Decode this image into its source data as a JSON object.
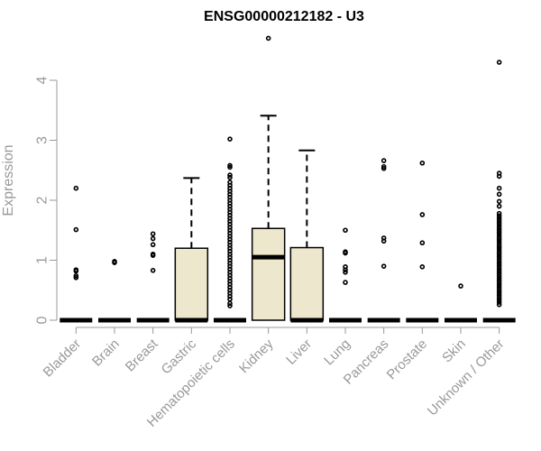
{
  "chart_data": {
    "type": "boxplot",
    "title": "ENSG00000212182 - U3",
    "ylabel": "Expression",
    "xlabel": "",
    "ylim": [
      0,
      4.7
    ],
    "yticks": [
      "0",
      "1",
      "2",
      "3",
      "4"
    ],
    "box_fill": "#ede7cd",
    "categories": [
      "Bladder",
      "Brain",
      "Breast",
      "Gastric",
      "Hematopoietic cells",
      "Kidney",
      "Liver",
      "Lung",
      "Pancreas",
      "Prostate",
      "Skin",
      "Unknown / Other"
    ],
    "series": [
      {
        "q1": 0,
        "median": 0,
        "q3": 0,
        "whisker_high": 0,
        "outliers": [
          2.2,
          1.51,
          0.84,
          0.82,
          0.74,
          0.71
        ]
      },
      {
        "q1": 0,
        "median": 0,
        "q3": 0,
        "whisker_high": 0,
        "outliers": [
          0.98,
          0.96
        ]
      },
      {
        "q1": 0,
        "median": 0,
        "q3": 0,
        "whisker_high": 0,
        "outliers": [
          1.44,
          1.36,
          1.26,
          1.1,
          1.08,
          0.83
        ]
      },
      {
        "q1": 0,
        "median": 0,
        "q3": 1.2,
        "whisker_high": 2.37,
        "outliers": []
      },
      {
        "q1": 0,
        "median": 0,
        "q3": 0,
        "whisker_high": 0,
        "outliers": [
          3.02,
          2.58,
          2.55,
          2.42,
          2.38,
          2.3,
          2.25,
          2.2,
          2.15,
          2.1,
          2.05,
          2.0,
          1.95,
          1.9,
          1.85,
          1.8,
          1.75,
          1.7,
          1.65,
          1.6,
          1.55,
          1.5,
          1.45,
          1.4,
          1.35,
          1.3,
          1.25,
          1.2,
          1.15,
          1.1,
          1.05,
          1.0,
          0.95,
          0.9,
          0.85,
          0.8,
          0.75,
          0.7,
          0.65,
          0.6,
          0.55,
          0.5,
          0.45,
          0.4,
          0.35,
          0.28,
          0.24
        ]
      },
      {
        "q1": 0,
        "median": 1.05,
        "q3": 1.53,
        "whisker_high": 3.41,
        "outliers": [
          4.7
        ]
      },
      {
        "q1": 0,
        "median": 0,
        "q3": 1.21,
        "whisker_high": 2.83,
        "outliers": []
      },
      {
        "q1": 0,
        "median": 0,
        "q3": 0,
        "whisker_high": 0,
        "outliers": [
          1.5,
          1.14,
          1.12,
          0.89,
          0.84,
          0.8,
          0.63
        ]
      },
      {
        "q1": 0,
        "median": 0,
        "q3": 0,
        "whisker_high": 0,
        "outliers": [
          2.66,
          2.56,
          2.53,
          1.37,
          1.32,
          0.9
        ]
      },
      {
        "q1": 0,
        "median": 0,
        "q3": 0,
        "whisker_high": 0,
        "outliers": [
          2.62,
          1.76,
          1.29,
          0.89
        ]
      },
      {
        "q1": 0,
        "median": 0,
        "q3": 0,
        "whisker_high": 0,
        "outliers": [
          0.57
        ]
      },
      {
        "q1": 0,
        "median": 0,
        "q3": 0,
        "whisker_high": 0,
        "outliers": [
          4.3,
          2.45,
          2.4,
          2.2,
          2.1,
          1.98,
          1.9,
          1.78,
          1.74,
          1.7,
          1.66,
          1.62,
          1.58,
          1.54,
          1.5,
          1.46,
          1.42,
          1.38,
          1.34,
          1.3,
          1.26,
          1.22,
          1.18,
          1.14,
          1.1,
          1.06,
          1.02,
          0.98,
          0.94,
          0.9,
          0.86,
          0.82,
          0.78,
          0.74,
          0.7,
          0.66,
          0.62,
          0.58,
          0.54,
          0.5,
          0.46,
          0.42,
          0.38,
          0.34,
          0.3,
          0.26
        ]
      }
    ]
  }
}
